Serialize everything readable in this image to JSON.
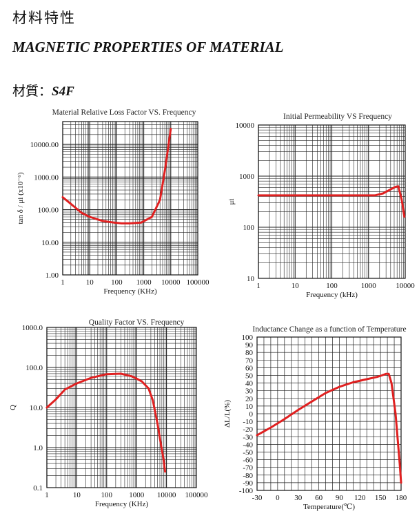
{
  "header": {
    "title_cn": "材料特性",
    "title_en": "MAGNETIC PROPERTIES OF MATERIAL",
    "material_label": "材質：",
    "material_name": "S4F"
  },
  "chart_data": [
    {
      "id": "loss",
      "type": "line",
      "title": "Material Relative Loss Factor VS. Frequency",
      "xlabel": "Frequency (KHz)",
      "ylabel": "tan δ / μi (x10⁻⁶)",
      "x_scale": "log",
      "y_scale": "log",
      "xlim": [
        1,
        100000
      ],
      "ylim": [
        1,
        50000
      ],
      "x_ticks": [
        1,
        10,
        100,
        1000,
        10000,
        100000
      ],
      "x_tick_labels": [
        "1",
        "10",
        "100",
        "1000",
        "10000",
        "100000"
      ],
      "y_ticks": [
        1,
        10,
        100,
        1000,
        10000
      ],
      "y_tick_labels": [
        "1.00",
        "10.00",
        "100.00",
        "1000.00",
        "10000.00"
      ],
      "grid": true,
      "line_color": "#e02020",
      "series": [
        {
          "x": [
            1,
            2,
            5,
            10,
            30,
            80,
            150,
            300,
            800,
            2000,
            4000,
            6000,
            8000,
            10000
          ],
          "y": [
            240,
            150,
            80,
            60,
            45,
            40,
            38,
            38,
            40,
            60,
            200,
            1500,
            8000,
            30000
          ]
        }
      ]
    },
    {
      "id": "perm",
      "type": "line",
      "title": "Initial Permeability VS Frequency",
      "xlabel": "Frequency (kHz)",
      "ylabel": "μi",
      "x_scale": "log",
      "y_scale": "log",
      "xlim": [
        1,
        10000
      ],
      "ylim": [
        10,
        10000
      ],
      "x_ticks": [
        1,
        10,
        100,
        1000,
        10000
      ],
      "x_tick_labels": [
        "1",
        "10",
        "100",
        "1000",
        "10000"
      ],
      "y_ticks": [
        10,
        100,
        1000,
        10000
      ],
      "y_tick_labels": [
        "10",
        "100",
        "1000",
        "10000"
      ],
      "grid": true,
      "line_color": "#e02020",
      "series": [
        {
          "x": [
            1,
            10,
            100,
            1000,
            1500,
            2500,
            4000,
            5500,
            6500,
            8000,
            9500
          ],
          "y": [
            420,
            420,
            420,
            420,
            420,
            460,
            550,
            620,
            630,
            350,
            160
          ]
        }
      ]
    },
    {
      "id": "q",
      "type": "line",
      "title": "Quality Factor  VS. Frequency",
      "xlabel": "Frequency (KHz)",
      "ylabel": "Q",
      "x_scale": "log",
      "y_scale": "log",
      "xlim": [
        1,
        100000
      ],
      "ylim": [
        0.1,
        1000
      ],
      "x_ticks": [
        1,
        10,
        100,
        1000,
        10000,
        100000
      ],
      "x_tick_labels": [
        "1",
        "10",
        "100",
        "1000",
        "10000",
        "100000"
      ],
      "y_ticks": [
        0.1,
        1,
        10,
        100,
        1000
      ],
      "y_tick_labels": [
        "0.1",
        "1.0",
        "10.0",
        "100.0",
        "1000.0"
      ],
      "grid": true,
      "line_color": "#e02020",
      "series": [
        {
          "x": [
            1,
            2,
            4,
            10,
            30,
            100,
            300,
            700,
            1500,
            2500,
            3500,
            5000,
            6500,
            8000,
            9000
          ],
          "y": [
            10,
            16,
            28,
            40,
            55,
            68,
            70,
            60,
            45,
            30,
            15,
            4,
            1.2,
            0.5,
            0.25
          ]
        }
      ]
    },
    {
      "id": "temp",
      "type": "line",
      "title": "Inductance Change as a function of Temperature",
      "xlabel": "Temperature(℃)",
      "ylabel": "ΔL/L(%)",
      "x_scale": "linear",
      "y_scale": "linear",
      "xlim": [
        -30,
        180
      ],
      "ylim": [
        -100,
        100
      ],
      "x_ticks": [
        -30,
        0,
        30,
        60,
        90,
        120,
        150,
        180
      ],
      "x_tick_labels": [
        "-30",
        "0",
        "30",
        "60",
        "90",
        "120",
        "150",
        "180"
      ],
      "y_ticks": [
        -100,
        -90,
        -80,
        -70,
        -60,
        -50,
        -40,
        -30,
        -20,
        -10,
        0,
        10,
        20,
        30,
        40,
        50,
        60,
        70,
        80,
        90,
        100
      ],
      "y_tick_labels": [
        "-100",
        "-90",
        "-80",
        "-70",
        "-60",
        "-50",
        "-40",
        "-30",
        "-20",
        "-10",
        "0",
        "10",
        "20",
        "30",
        "40",
        "50",
        "60",
        "70",
        "80",
        "90",
        "100"
      ],
      "grid": true,
      "line_color": "#e02020",
      "series": [
        {
          "x": [
            -30,
            -10,
            10,
            30,
            50,
            70,
            90,
            110,
            130,
            145,
            152,
            158,
            162,
            166,
            172,
            178,
            180
          ],
          "y": [
            -28,
            -18,
            -7,
            5,
            16,
            27,
            35,
            41,
            45,
            48,
            50,
            52,
            52,
            40,
            0,
            -65,
            -90
          ]
        }
      ]
    }
  ]
}
